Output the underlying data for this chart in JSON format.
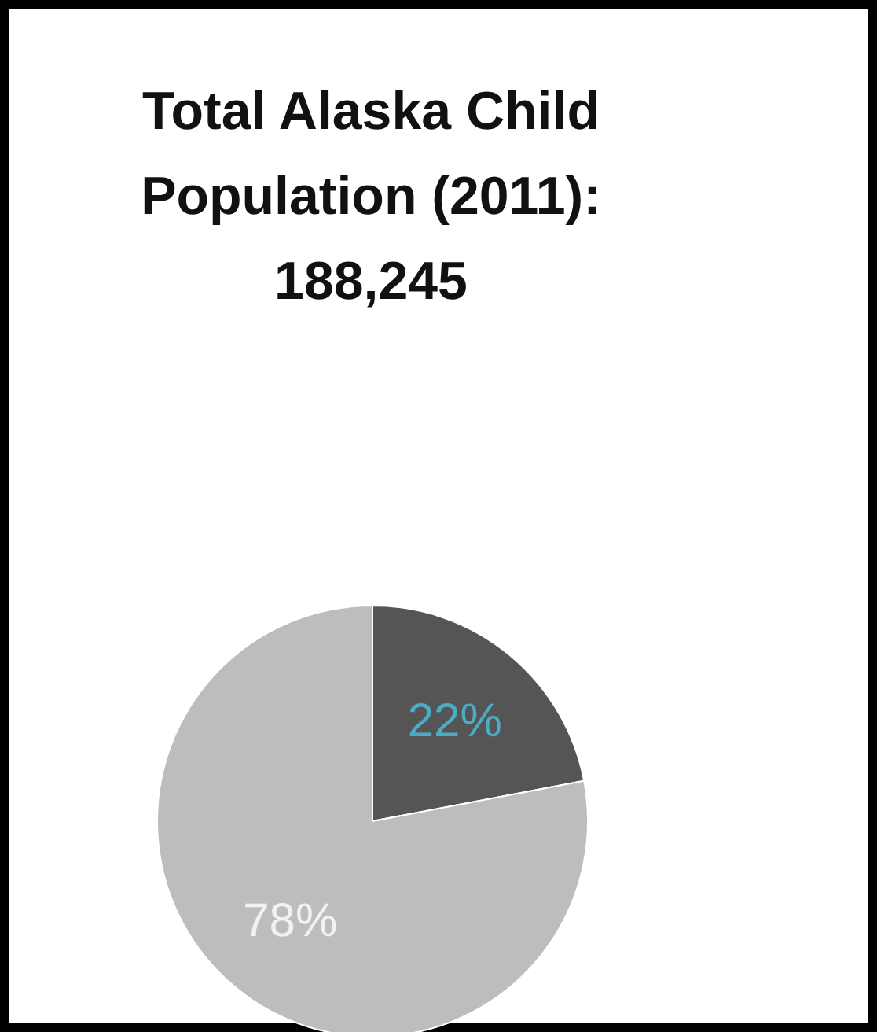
{
  "chart_data": {
    "type": "pie",
    "title": "Total Alaska Child Population (2011): 188,245",
    "categories": [
      null,
      null
    ],
    "values": [
      22,
      78
    ],
    "colors": [
      "#555555",
      "#bdbdbd"
    ],
    "value_labels": [
      "22%",
      "78%"
    ]
  }
}
